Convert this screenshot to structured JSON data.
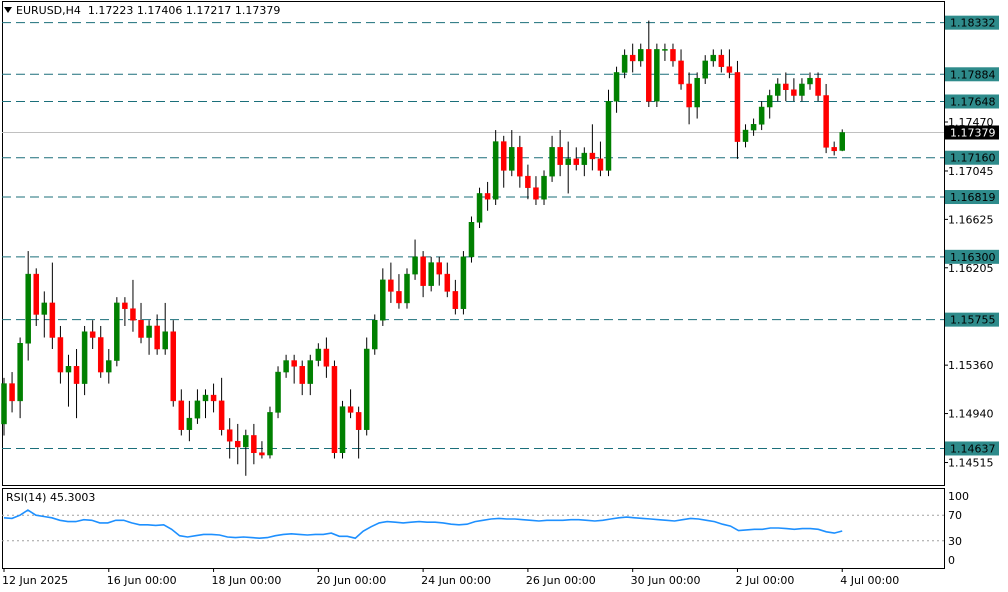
{
  "header": {
    "symbol": "EURUSD,H4",
    "ohlc": "1.17223 1.17406 1.17217 1.17379"
  },
  "rsi_header": "RSI(14) 45.3003",
  "colors": {
    "bull": "#008000",
    "bear": "#ff0000",
    "level_line": "#1b6f7a",
    "level_tag_bg": "#2e8b8b",
    "price_tag_bg": "#000000",
    "rsi_line": "#1e90ff",
    "grid_axis": "#000000"
  },
  "chart_data": [
    {
      "type": "candlestick",
      "title": "EURUSD,H4",
      "ylim": [
        1.1432,
        1.1852
      ],
      "y_ticks": [
        "1.18332",
        "1.17884",
        "1.17648",
        "1.17470",
        "1.17379",
        "1.17160",
        "1.17045",
        "1.16819",
        "1.16625",
        "1.16300",
        "1.16205",
        "1.15755",
        "1.15360",
        "1.14940",
        "1.14637",
        "1.14515"
      ],
      "x_labels": [
        "12 Jun 2025",
        "16 Jun 00:00",
        "18 Jun 00:00",
        "20 Jun 00:00",
        "24 Jun 00:00",
        "26 Jun 00:00",
        "30 Jun 00:00",
        "2 Jul 00:00",
        "4 Jul 00:00"
      ],
      "current_price": 1.17379,
      "levels": [
        1.18332,
        1.17884,
        1.17648,
        1.1716,
        1.16819,
        1.163,
        1.15755,
        1.14637
      ],
      "ohlc": [
        [
          1.1485,
          1.1525,
          1.1475,
          1.152
        ],
        [
          1.152,
          1.153,
          1.1495,
          1.1505
        ],
        [
          1.1505,
          1.156,
          1.149,
          1.1555
        ],
        [
          1.1555,
          1.1635,
          1.154,
          1.1615
        ],
        [
          1.1615,
          1.162,
          1.157,
          1.158
        ],
        [
          1.158,
          1.16,
          1.156,
          1.159
        ],
        [
          1.159,
          1.1625,
          1.155,
          1.156
        ],
        [
          1.156,
          1.157,
          1.152,
          1.153
        ],
        [
          1.153,
          1.1545,
          1.15,
          1.1535
        ],
        [
          1.1535,
          1.155,
          1.149,
          1.152
        ],
        [
          1.152,
          1.157,
          1.151,
          1.1565
        ],
        [
          1.1565,
          1.1575,
          1.155,
          1.156
        ],
        [
          1.156,
          1.157,
          1.1525,
          1.153
        ],
        [
          1.153,
          1.155,
          1.152,
          1.154
        ],
        [
          1.154,
          1.1595,
          1.1535,
          1.159
        ],
        [
          1.159,
          1.1595,
          1.157,
          1.1585
        ],
        [
          1.1585,
          1.161,
          1.1565,
          1.1575
        ],
        [
          1.1575,
          1.159,
          1.1555,
          1.156
        ],
        [
          1.156,
          1.1575,
          1.1545,
          1.157
        ],
        [
          1.157,
          1.158,
          1.1545,
          1.155
        ],
        [
          1.155,
          1.159,
          1.1545,
          1.1565
        ],
        [
          1.1565,
          1.1575,
          1.15,
          1.1505
        ],
        [
          1.1505,
          1.1515,
          1.1475,
          1.148
        ],
        [
          1.148,
          1.1505,
          1.147,
          1.149
        ],
        [
          1.149,
          1.1515,
          1.1485,
          1.1505
        ],
        [
          1.1505,
          1.1515,
          1.149,
          1.151
        ],
        [
          1.151,
          1.152,
          1.1495,
          1.1505
        ],
        [
          1.1505,
          1.1525,
          1.1475,
          1.148
        ],
        [
          1.148,
          1.149,
          1.1455,
          1.147
        ],
        [
          1.147,
          1.1485,
          1.145,
          1.1465
        ],
        [
          1.1465,
          1.148,
          1.144,
          1.1475
        ],
        [
          1.1475,
          1.1485,
          1.145,
          1.146
        ],
        [
          1.146,
          1.147,
          1.1455,
          1.1458
        ],
        [
          1.1458,
          1.15,
          1.1455,
          1.1495
        ],
        [
          1.1495,
          1.1535,
          1.149,
          1.153
        ],
        [
          1.153,
          1.1545,
          1.1525,
          1.154
        ],
        [
          1.154,
          1.1545,
          1.152,
          1.1535
        ],
        [
          1.1535,
          1.154,
          1.151,
          1.152
        ],
        [
          1.152,
          1.1545,
          1.151,
          1.154
        ],
        [
          1.154,
          1.1555,
          1.1535,
          1.155
        ],
        [
          1.155,
          1.156,
          1.1525,
          1.1535
        ],
        [
          1.1535,
          1.154,
          1.1455,
          1.146
        ],
        [
          1.146,
          1.1505,
          1.1455,
          1.15
        ],
        [
          1.15,
          1.1515,
          1.149,
          1.1495
        ],
        [
          1.1495,
          1.15,
          1.1455,
          1.148
        ],
        [
          1.148,
          1.156,
          1.1475,
          1.155
        ],
        [
          1.155,
          1.158,
          1.1545,
          1.1575
        ],
        [
          1.1575,
          1.162,
          1.157,
          1.161
        ],
        [
          1.161,
          1.1625,
          1.159,
          1.16
        ],
        [
          1.16,
          1.1615,
          1.1585,
          1.159
        ],
        [
          1.159,
          1.162,
          1.1585,
          1.1615
        ],
        [
          1.1615,
          1.1645,
          1.161,
          1.163
        ],
        [
          1.163,
          1.1635,
          1.1595,
          1.1605
        ],
        [
          1.1605,
          1.163,
          1.16,
          1.1625
        ],
        [
          1.1625,
          1.163,
          1.1605,
          1.1615
        ],
        [
          1.1615,
          1.1625,
          1.1595,
          1.16
        ],
        [
          1.16,
          1.161,
          1.158,
          1.1585
        ],
        [
          1.1585,
          1.1635,
          1.158,
          1.163
        ],
        [
          1.163,
          1.1665,
          1.1625,
          1.166
        ],
        [
          1.166,
          1.169,
          1.1655,
          1.1685
        ],
        [
          1.1685,
          1.1695,
          1.167,
          1.168
        ],
        [
          1.168,
          1.174,
          1.1675,
          1.173
        ],
        [
          1.173,
          1.1735,
          1.169,
          1.1705
        ],
        [
          1.1705,
          1.174,
          1.17,
          1.1725
        ],
        [
          1.1725,
          1.1735,
          1.169,
          1.17
        ],
        [
          1.17,
          1.171,
          1.168,
          1.169
        ],
        [
          1.169,
          1.17,
          1.1675,
          1.168
        ],
        [
          1.168,
          1.1705,
          1.1675,
          1.17
        ],
        [
          1.17,
          1.1735,
          1.1695,
          1.1725
        ],
        [
          1.1725,
          1.174,
          1.17,
          1.171
        ],
        [
          1.171,
          1.173,
          1.1685,
          1.1715
        ],
        [
          1.1715,
          1.1725,
          1.1705,
          1.171
        ],
        [
          1.171,
          1.1725,
          1.17,
          1.172
        ],
        [
          1.172,
          1.1745,
          1.1705,
          1.1715
        ],
        [
          1.1715,
          1.173,
          1.17,
          1.1705
        ],
        [
          1.1705,
          1.1775,
          1.17,
          1.1765
        ],
        [
          1.1765,
          1.1795,
          1.1755,
          1.179
        ],
        [
          1.179,
          1.181,
          1.1785,
          1.1805
        ],
        [
          1.1805,
          1.1815,
          1.179,
          1.18
        ],
        [
          1.18,
          1.1815,
          1.1795,
          1.181
        ],
        [
          1.181,
          1.1835,
          1.176,
          1.1765
        ],
        [
          1.1765,
          1.1815,
          1.176,
          1.181
        ],
        [
          1.181,
          1.1815,
          1.18,
          1.181
        ],
        [
          1.181,
          1.1815,
          1.1795,
          1.18
        ],
        [
          1.18,
          1.181,
          1.1775,
          1.178
        ],
        [
          1.178,
          1.179,
          1.1745,
          1.176
        ],
        [
          1.176,
          1.179,
          1.175,
          1.1785
        ],
        [
          1.1785,
          1.1805,
          1.178,
          1.18
        ],
        [
          1.18,
          1.181,
          1.1795,
          1.1805
        ],
        [
          1.1805,
          1.181,
          1.179,
          1.1795
        ],
        [
          1.1795,
          1.181,
          1.1785,
          1.179
        ],
        [
          1.179,
          1.18,
          1.1715,
          1.173
        ],
        [
          1.173,
          1.1745,
          1.1725,
          1.174
        ],
        [
          1.174,
          1.175,
          1.1735,
          1.1745
        ],
        [
          1.1745,
          1.1765,
          1.174,
          1.176
        ],
        [
          1.176,
          1.1775,
          1.175,
          1.177
        ],
        [
          1.177,
          1.1785,
          1.1765,
          1.178
        ],
        [
          1.178,
          1.179,
          1.1765,
          1.1775
        ],
        [
          1.1775,
          1.1785,
          1.1765,
          1.177
        ],
        [
          1.177,
          1.1785,
          1.1765,
          1.178
        ],
        [
          1.178,
          1.179,
          1.1775,
          1.1785
        ],
        [
          1.1785,
          1.179,
          1.1765,
          1.177
        ],
        [
          1.177,
          1.178,
          1.172,
          1.1725
        ],
        [
          1.1725,
          1.173,
          1.1718,
          1.1722
        ],
        [
          1.17223,
          1.17406,
          1.17217,
          1.17379
        ]
      ]
    },
    {
      "type": "line",
      "title": "RSI(14) 45.3003",
      "ylim": [
        0,
        100
      ],
      "y_ticks": [
        "100",
        "70",
        "30",
        "0"
      ],
      "levels": [
        70,
        30
      ],
      "series": [
        {
          "name": "RSI(14)",
          "values": [
            66,
            65,
            70,
            78,
            70,
            68,
            66,
            62,
            60,
            60,
            63,
            62,
            58,
            58,
            62,
            62,
            58,
            55,
            55,
            54,
            55,
            48,
            38,
            36,
            38,
            40,
            40,
            39,
            36,
            35,
            36,
            35,
            34,
            35,
            38,
            40,
            41,
            40,
            39,
            40,
            40,
            42,
            37,
            37,
            34,
            45,
            52,
            58,
            60,
            59,
            58,
            59,
            60,
            59,
            59,
            58,
            56,
            55,
            56,
            60,
            62,
            64,
            65,
            64,
            64,
            63,
            62,
            61,
            62,
            62,
            62,
            63,
            63,
            62,
            61,
            62,
            64,
            66,
            67,
            66,
            65,
            64,
            63,
            62,
            61,
            63,
            65,
            64,
            62,
            60,
            56,
            53,
            46,
            47,
            48,
            48,
            50,
            50,
            49,
            48,
            49,
            49,
            48,
            44,
            42,
            45.3
          ]
        }
      ]
    }
  ]
}
